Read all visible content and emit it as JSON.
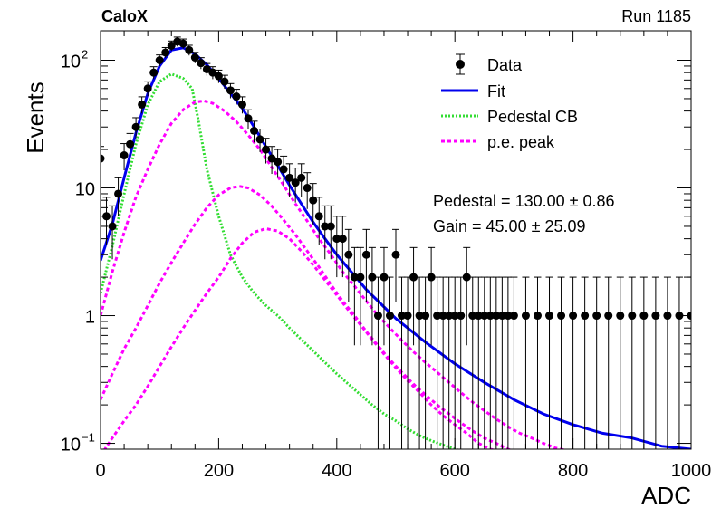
{
  "header": {
    "left_label": "CaloX",
    "right_label": "Run 1185"
  },
  "chart_data": {
    "type": "scatter",
    "xlabel": "ADC",
    "ylabel": "Events",
    "xlim": [
      0,
      1000
    ],
    "ylim": [
      0.09,
      170
    ],
    "yscale": "log",
    "x_ticks": [
      0,
      200,
      400,
      600,
      800,
      1000
    ],
    "y_ticks": [
      {
        "value": 0.1,
        "label": "10",
        "exp": "−1"
      },
      {
        "value": 1,
        "label": "1",
        "exp": ""
      },
      {
        "value": 10,
        "label": "10",
        "exp": ""
      },
      {
        "value": 100,
        "label": "10",
        "exp": "2"
      }
    ],
    "grid": false,
    "legend_position": "top-right",
    "legend": [
      {
        "label": "Data",
        "style": "marker",
        "color": "#000000"
      },
      {
        "label": "Fit",
        "style": "solid",
        "color": "#0000ee"
      },
      {
        "label": "Pedestal CB",
        "style": "dotted",
        "color": "#33dd33"
      },
      {
        "label": "p.e. peak",
        "style": "dashed",
        "color": "#ff00ff"
      }
    ],
    "annotations": [
      {
        "name": "pedestal",
        "text": "Pedestal = 130.00 ± 0.86"
      },
      {
        "name": "gain",
        "text": "Gain = 45.00 ± 25.09"
      }
    ],
    "fit": {
      "name": "Fit",
      "color": "#0000ee",
      "x": [
        0,
        20,
        40,
        60,
        80,
        100,
        120,
        140,
        160,
        180,
        200,
        220,
        240,
        260,
        280,
        300,
        320,
        340,
        360,
        380,
        400,
        450,
        500,
        550,
        600,
        650,
        700,
        750,
        800,
        850,
        900,
        950,
        1000
      ],
      "y": [
        2.7,
        5.2,
        12,
        27,
        55,
        90,
        120,
        125,
        112,
        92,
        72,
        55,
        42,
        30,
        21,
        15,
        10.5,
        7.5,
        5.4,
        4.0,
        3.0,
        1.6,
        0.95,
        0.62,
        0.42,
        0.3,
        0.22,
        0.17,
        0.14,
        0.12,
        0.11,
        0.095,
        0.09
      ]
    },
    "pedestal_cb": {
      "name": "Pedestal CB",
      "color": "#33dd33",
      "x": [
        0,
        20,
        40,
        60,
        80,
        100,
        120,
        140,
        155,
        165,
        180,
        200,
        220,
        240,
        260,
        280,
        300,
        320,
        340,
        360,
        380,
        400,
        420,
        440,
        460,
        480,
        500,
        520,
        540,
        560,
        580,
        600,
        620,
        640,
        660
      ],
      "y": [
        1.5,
        3.5,
        9,
        22,
        45,
        68,
        78,
        72,
        60,
        35,
        14,
        6,
        3,
        2,
        1.5,
        1.2,
        1.0,
        0.8,
        0.65,
        0.53,
        0.43,
        0.35,
        0.29,
        0.24,
        0.2,
        0.17,
        0.15,
        0.13,
        0.115,
        0.105,
        0.097,
        0.09,
        0.085,
        0.082,
        0.08
      ]
    },
    "pe_peaks": [
      {
        "name": "p.e. peak 1",
        "color": "#ff00ff",
        "x": [
          0,
          20,
          40,
          60,
          80,
          100,
          120,
          140,
          160,
          175,
          190,
          210,
          230,
          250,
          270,
          290,
          310,
          330,
          350,
          370,
          390,
          410,
          430,
          450,
          470,
          490,
          510,
          530,
          550,
          570,
          590,
          610,
          630,
          650,
          670,
          690,
          710,
          730,
          750,
          770,
          790
        ],
        "y": [
          1.0,
          2.2,
          4.5,
          8.5,
          14,
          22,
          32,
          41,
          47,
          48,
          46,
          40,
          33,
          26,
          20,
          14.5,
          10.5,
          7.5,
          5.5,
          4.0,
          3.0,
          2.2,
          1.7,
          1.3,
          1.0,
          0.8,
          0.64,
          0.52,
          0.43,
          0.36,
          0.3,
          0.25,
          0.21,
          0.18,
          0.155,
          0.135,
          0.12,
          0.11,
          0.1,
          0.092,
          0.088
        ]
      },
      {
        "name": "p.e. peak 2",
        "color": "#ff00ff",
        "x": [
          0,
          20,
          40,
          60,
          80,
          100,
          120,
          140,
          160,
          180,
          200,
          220,
          235,
          250,
          270,
          290,
          310,
          330,
          350,
          370,
          390,
          410,
          430,
          450,
          470,
          490,
          510,
          530,
          550,
          570,
          590,
          610,
          630,
          650,
          670,
          690,
          700
        ],
        "y": [
          0.22,
          0.35,
          0.55,
          0.8,
          1.2,
          1.8,
          2.6,
          3.7,
          5.2,
          7,
          8.8,
          10,
          10.3,
          10,
          8.8,
          7.2,
          5.6,
          4.3,
          3.2,
          2.4,
          1.75,
          1.3,
          1.0,
          0.75,
          0.58,
          0.45,
          0.36,
          0.29,
          0.24,
          0.2,
          0.17,
          0.145,
          0.125,
          0.11,
          0.1,
          0.09,
          0.087
        ]
      },
      {
        "name": "p.e. peak 3",
        "color": "#ff00ff",
        "x": [
          0,
          20,
          40,
          60,
          80,
          100,
          120,
          140,
          160,
          180,
          200,
          220,
          240,
          260,
          280,
          300,
          320,
          340,
          360,
          380,
          400,
          420,
          440,
          460,
          480,
          500,
          520,
          540,
          560,
          580,
          600,
          620,
          640,
          660,
          680
        ],
        "y": [
          0.08,
          0.11,
          0.15,
          0.2,
          0.28,
          0.4,
          0.57,
          0.8,
          1.1,
          1.5,
          2.0,
          2.8,
          3.7,
          4.5,
          4.8,
          4.6,
          4.0,
          3.2,
          2.5,
          1.9,
          1.45,
          1.1,
          0.85,
          0.65,
          0.5,
          0.39,
          0.31,
          0.25,
          0.2,
          0.165,
          0.14,
          0.12,
          0.1,
          0.09,
          0.085
        ]
      }
    ],
    "data": {
      "name": "Data",
      "x": [
        0,
        10,
        20,
        30,
        40,
        50,
        60,
        70,
        80,
        90,
        100,
        110,
        120,
        130,
        140,
        150,
        160,
        170,
        180,
        190,
        200,
        210,
        220,
        230,
        240,
        250,
        260,
        270,
        280,
        290,
        300,
        310,
        320,
        330,
        340,
        350,
        360,
        370,
        380,
        390,
        400,
        410,
        420,
        430,
        440,
        450,
        460,
        470,
        480,
        490,
        500,
        510,
        520,
        530,
        540,
        550,
        560,
        570,
        580,
        590,
        600,
        610,
        620,
        630,
        640,
        650,
        660,
        670,
        680,
        690,
        700,
        720,
        740,
        760,
        780,
        800,
        820,
        840,
        860,
        880,
        900,
        920,
        940,
        960,
        980,
        1000
      ],
      "y": [
        17,
        6,
        5,
        9,
        18,
        22,
        30,
        45,
        60,
        80,
        100,
        115,
        130,
        140,
        135,
        120,
        105,
        95,
        85,
        80,
        75,
        68,
        58,
        52,
        45,
        35,
        28,
        24,
        20,
        17,
        16,
        14,
        12,
        11,
        12,
        10,
        8,
        6,
        5,
        5,
        4,
        4,
        3,
        2,
        2,
        3,
        2,
        1,
        2,
        1,
        3,
        1,
        1,
        2,
        1,
        1,
        2,
        1,
        1,
        1,
        1,
        1,
        2,
        1,
        1,
        1,
        1,
        1,
        1,
        1,
        1,
        1,
        1,
        1,
        1,
        1,
        1,
        1,
        1,
        1,
        1,
        1,
        1,
        1,
        1,
        1
      ]
    }
  }
}
